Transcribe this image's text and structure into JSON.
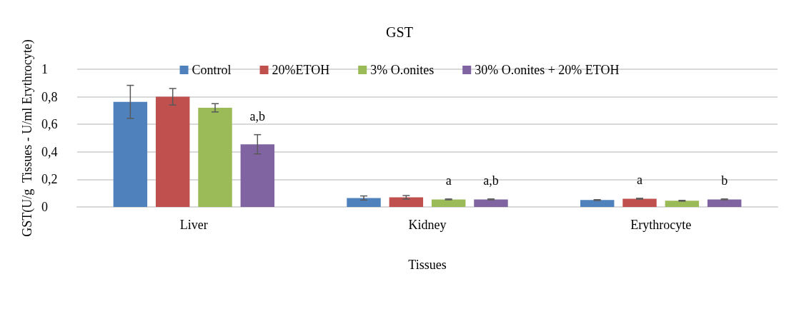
{
  "chart_data": {
    "type": "bar",
    "title": "GST",
    "xlabel": "Tissues",
    "ylabel": "GST(U/g  Tissues - U/ml Erythrocyte)",
    "categories": [
      "Liver",
      "Kidney",
      "Erythrocyte"
    ],
    "series": [
      {
        "name": "Control",
        "color": "#4f81bd",
        "values": [
          0.763,
          0.065,
          0.05
        ],
        "errors": [
          0.12,
          0.015,
          0.003
        ]
      },
      {
        "name": "20%ETOH",
        "color": "#c0504d",
        "values": [
          0.8,
          0.07,
          0.06
        ],
        "errors": [
          0.06,
          0.013,
          0.003
        ],
        "value_labels": [
          null,
          null,
          "a"
        ]
      },
      {
        "name": "3% O.onites",
        "color": "#9bbb59",
        "values": [
          0.72,
          0.055,
          0.045
        ],
        "errors": [
          0.03,
          0.003,
          0.003
        ],
        "value_labels": [
          null,
          "a",
          null
        ]
      },
      {
        "name": "30% O.onites + 20% ETOH",
        "color": "#8064a2",
        "values": [
          0.455,
          0.055,
          0.055
        ],
        "errors": [
          0.07,
          0.003,
          0.003
        ],
        "value_labels": [
          "a,b",
          "a,b",
          "b"
        ]
      }
    ],
    "ylim": [
      0,
      1
    ],
    "yticks": [
      0,
      {
        "value": 0.2,
        "label": "0,2"
      },
      {
        "value": 0.4,
        "label": "0,4"
      },
      {
        "value": 0.6,
        "label": "0,6"
      },
      {
        "value": 0.8,
        "label": "0,8"
      },
      1
    ],
    "grid": "y",
    "legend": "top"
  }
}
